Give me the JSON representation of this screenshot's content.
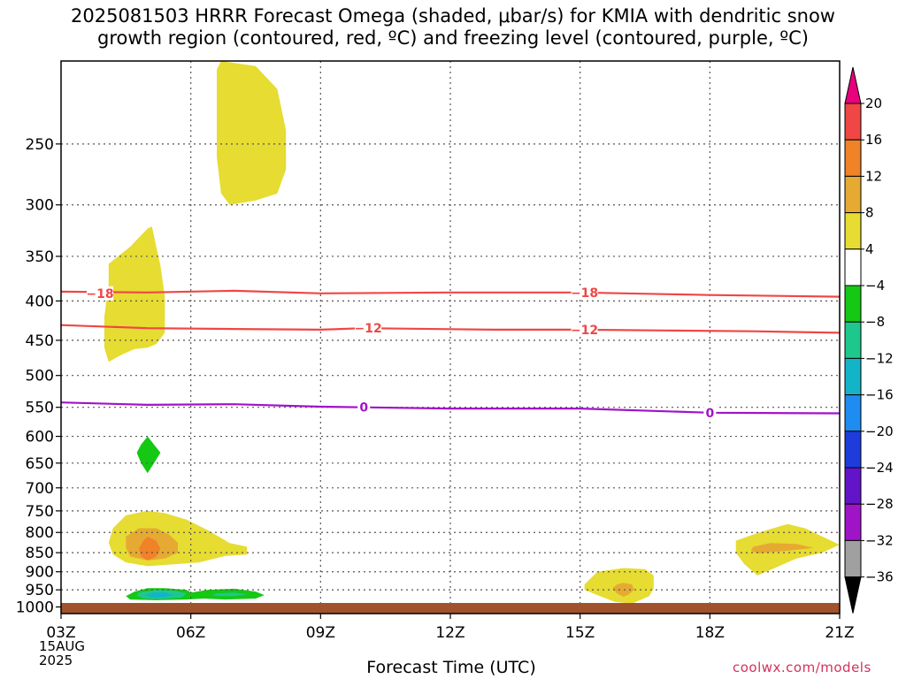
{
  "title": "2025081503 HRRR Forecast Omega (shaded, μbar/s) for KMIA with dendritic snow\ngrowth region (contoured, red, ºC) and freezing level (contoured, purple, ºC)",
  "xlabel": "Forecast Time (UTC)",
  "date_line1": "15AUG",
  "date_line2": "2025",
  "credit": "coolwx.com/models",
  "chart_data": {
    "type": "heatmap",
    "x_ticks": [
      "03Z",
      "06Z",
      "09Z",
      "12Z",
      "15Z",
      "18Z",
      "21Z"
    ],
    "x_hours": [
      3,
      6,
      9,
      12,
      15,
      18,
      21
    ],
    "y_ticks": [
      250,
      300,
      350,
      400,
      450,
      500,
      550,
      600,
      650,
      700,
      750,
      800,
      850,
      900,
      950,
      1000
    ],
    "ylim_hpa": [
      195,
      1020
    ],
    "xlim_hours": [
      3,
      21
    ],
    "grid": true,
    "colorbar": {
      "labels": [
        "20",
        "16",
        "12",
        "8",
        "4",
        "−4",
        "−8",
        "−12",
        "−16",
        "−20",
        "−24",
        "−28",
        "−32",
        "−36"
      ],
      "colors": [
        "#e8007c",
        "#f04646",
        "#f08228",
        "#e6aa32",
        "#e6dc32",
        "#ffffff",
        "#14c814",
        "#1ec88c",
        "#14b4c8",
        "#1e8cf0",
        "#1e3cdc",
        "#6414c8",
        "#a014c8",
        "#a0a0a0",
        "#000000"
      ]
    },
    "contours": [
      {
        "name": "-18",
        "color": "#f04646",
        "points": [
          [
            3,
            389
          ],
          [
            5,
            390
          ],
          [
            7,
            388
          ],
          [
            9,
            391
          ],
          [
            12,
            390
          ],
          [
            15,
            390
          ],
          [
            18,
            393
          ],
          [
            21,
            395
          ]
        ],
        "labels": [
          [
            3.9,
            391
          ],
          [
            15.1,
            390
          ]
        ]
      },
      {
        "name": "-12",
        "color": "#f04646",
        "points": [
          [
            3,
            430
          ],
          [
            5,
            434
          ],
          [
            7,
            435
          ],
          [
            9,
            436
          ],
          [
            10,
            434
          ],
          [
            13,
            436
          ],
          [
            15,
            436
          ],
          [
            17,
            437
          ],
          [
            19,
            438
          ],
          [
            21,
            440
          ]
        ],
        "labels": [
          [
            10.1,
            434
          ],
          [
            15.1,
            436
          ]
        ]
      },
      {
        "name": "0",
        "color": "#a014c8",
        "points": [
          [
            3,
            542
          ],
          [
            5,
            546
          ],
          [
            7,
            545
          ],
          [
            9,
            549
          ],
          [
            10,
            550
          ],
          [
            12,
            552
          ],
          [
            15,
            552
          ],
          [
            18,
            559
          ],
          [
            21,
            560
          ]
        ],
        "labels": [
          [
            10,
            550
          ],
          [
            18,
            559
          ]
        ]
      }
    ],
    "regions": [
      {
        "color": "#e6dc32",
        "points": [
          [
            6.7,
            195
          ],
          [
            7.5,
            198
          ],
          [
            8.0,
            212
          ],
          [
            8.2,
            240
          ],
          [
            8.2,
            270
          ],
          [
            8.0,
            290
          ],
          [
            7.5,
            296
          ],
          [
            6.9,
            300
          ],
          [
            6.7,
            290
          ],
          [
            6.6,
            260
          ],
          [
            6.6,
            230
          ],
          [
            6.6,
            200
          ]
        ]
      },
      {
        "color": "#e6dc32",
        "points": [
          [
            4.1,
            358
          ],
          [
            4.6,
            340
          ],
          [
            5.0,
            322
          ],
          [
            5.1,
            320
          ],
          [
            5.2,
            340
          ],
          [
            5.3,
            360
          ],
          [
            5.4,
            395
          ],
          [
            5.4,
            440
          ],
          [
            5.2,
            455
          ],
          [
            5.0,
            460
          ],
          [
            4.7,
            462
          ],
          [
            4.4,
            470
          ],
          [
            4.1,
            480
          ],
          [
            4.0,
            460
          ],
          [
            4.0,
            420
          ],
          [
            4.1,
            380
          ]
        ]
      },
      {
        "color": "#14c814",
        "points": [
          [
            5.0,
            600
          ],
          [
            5.15,
            615
          ],
          [
            5.3,
            630
          ],
          [
            5.15,
            650
          ],
          [
            5.0,
            670
          ],
          [
            4.85,
            650
          ],
          [
            4.75,
            630
          ],
          [
            4.85,
            615
          ]
        ]
      },
      {
        "color": "#e6dc32",
        "points": [
          [
            4.2,
            790
          ],
          [
            4.5,
            760
          ],
          [
            5.0,
            750
          ],
          [
            5.4,
            755
          ],
          [
            5.9,
            770
          ],
          [
            6.4,
            795
          ],
          [
            6.9,
            826
          ],
          [
            7.3,
            835
          ],
          [
            7.3,
            855
          ],
          [
            6.8,
            858
          ],
          [
            6.2,
            875
          ],
          [
            5.6,
            880
          ],
          [
            5.0,
            885
          ],
          [
            4.5,
            875
          ],
          [
            4.2,
            855
          ],
          [
            4.1,
            825
          ]
        ]
      },
      {
        "color": "#e6aa32",
        "points": [
          [
            4.5,
            810
          ],
          [
            4.8,
            790
          ],
          [
            5.2,
            790
          ],
          [
            5.5,
            805
          ],
          [
            5.7,
            825
          ],
          [
            5.7,
            850
          ],
          [
            5.4,
            865
          ],
          [
            5.0,
            870
          ],
          [
            4.6,
            860
          ],
          [
            4.5,
            838
          ]
        ]
      },
      {
        "color": "#f08228",
        "points": [
          [
            5.0,
            810
          ],
          [
            5.2,
            820
          ],
          [
            5.3,
            840
          ],
          [
            5.2,
            860
          ],
          [
            5.0,
            870
          ],
          [
            4.85,
            860
          ],
          [
            4.8,
            840
          ],
          [
            4.9,
            820
          ]
        ]
      },
      {
        "color": "#14c814",
        "points": [
          [
            4.7,
            955
          ],
          [
            5.0,
            945
          ],
          [
            5.4,
            945
          ],
          [
            5.9,
            950
          ],
          [
            6.0,
            958
          ],
          [
            6.4,
            950
          ],
          [
            7.0,
            947
          ],
          [
            7.5,
            955
          ],
          [
            7.7,
            965
          ],
          [
            7.5,
            975
          ],
          [
            6.8,
            978
          ],
          [
            6.3,
            975
          ],
          [
            5.9,
            978
          ],
          [
            5.2,
            980
          ],
          [
            4.6,
            978
          ],
          [
            4.5,
            968
          ]
        ]
      },
      {
        "color": "#1ec88c",
        "points": [
          [
            4.8,
            958
          ],
          [
            5.2,
            950
          ],
          [
            5.6,
            952
          ],
          [
            5.9,
            960
          ],
          [
            5.8,
            972
          ],
          [
            5.3,
            977
          ],
          [
            4.9,
            975
          ],
          [
            4.75,
            966
          ]
        ]
      },
      {
        "color": "#14b4c8",
        "points": [
          [
            5.1,
            958
          ],
          [
            5.4,
            956
          ],
          [
            5.6,
            965
          ],
          [
            5.4,
            972
          ],
          [
            5.1,
            972
          ],
          [
            4.95,
            965
          ]
        ]
      },
      {
        "color": "#1ec88c",
        "points": [
          [
            6.6,
            960
          ],
          [
            7.0,
            958
          ],
          [
            7.3,
            963
          ],
          [
            7.0,
            968
          ],
          [
            6.6,
            968
          ],
          [
            6.5,
            964
          ]
        ]
      },
      {
        "color": "#e6dc32",
        "points": [
          [
            15.1,
            935
          ],
          [
            15.4,
            900
          ],
          [
            16.0,
            890
          ],
          [
            16.5,
            893
          ],
          [
            16.7,
            910
          ],
          [
            16.7,
            945
          ],
          [
            16.6,
            968
          ],
          [
            16.2,
            990
          ],
          [
            15.8,
            985
          ],
          [
            15.4,
            965
          ],
          [
            15.1,
            950
          ]
        ]
      },
      {
        "color": "#e6aa32",
        "points": [
          [
            16.0,
            930
          ],
          [
            16.2,
            935
          ],
          [
            16.25,
            950
          ],
          [
            16.1,
            965
          ],
          [
            16.0,
            970
          ],
          [
            15.85,
            960
          ],
          [
            15.75,
            945
          ],
          [
            15.85,
            935
          ]
        ]
      },
      {
        "color": "#e6dc32",
        "points": [
          [
            19.3,
            795
          ],
          [
            19.8,
            780
          ],
          [
            20.2,
            790
          ],
          [
            20.6,
            810
          ],
          [
            21.0,
            830
          ],
          [
            20.6,
            850
          ],
          [
            20.0,
            865
          ],
          [
            19.4,
            895
          ],
          [
            19.1,
            910
          ],
          [
            18.8,
            880
          ],
          [
            18.6,
            850
          ],
          [
            18.6,
            820
          ],
          [
            19.0,
            805
          ]
        ]
      },
      {
        "color": "#e6aa32",
        "points": [
          [
            19.0,
            835
          ],
          [
            19.4,
            826
          ],
          [
            20.0,
            828
          ],
          [
            20.4,
            838
          ],
          [
            19.6,
            847
          ],
          [
            19.1,
            852
          ],
          [
            18.95,
            845
          ]
        ]
      }
    ]
  }
}
